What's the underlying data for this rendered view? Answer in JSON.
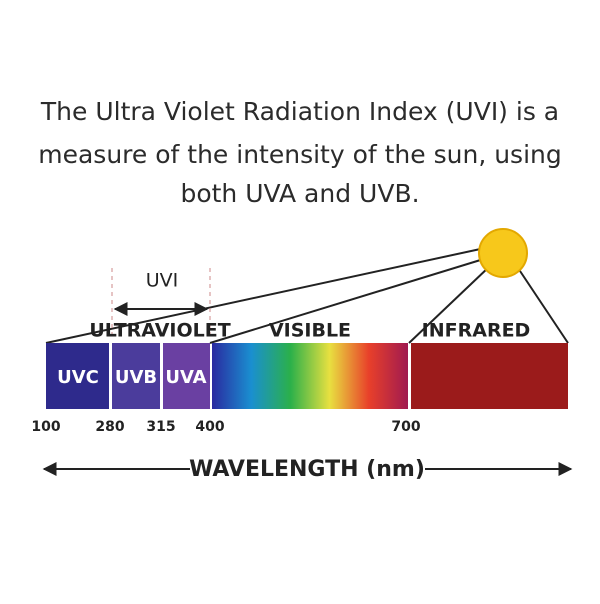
{
  "header": {
    "title_lines": [
      "The Ultra Violet Radiation Index (UVI) is a",
      "measure of the intensity of the sun, using",
      "both UVA and UVB."
    ]
  },
  "diagram": {
    "uvi_label": "UVI",
    "regions": [
      "ULTRAVIOLET",
      "VISIBLE",
      "INFRARED"
    ],
    "bands": [
      "UVC",
      "UVB",
      "UVA"
    ],
    "wavelengths": [
      100,
      280,
      315,
      400,
      700
    ],
    "axis_label": "WAVELENGTH (nm)"
  }
}
